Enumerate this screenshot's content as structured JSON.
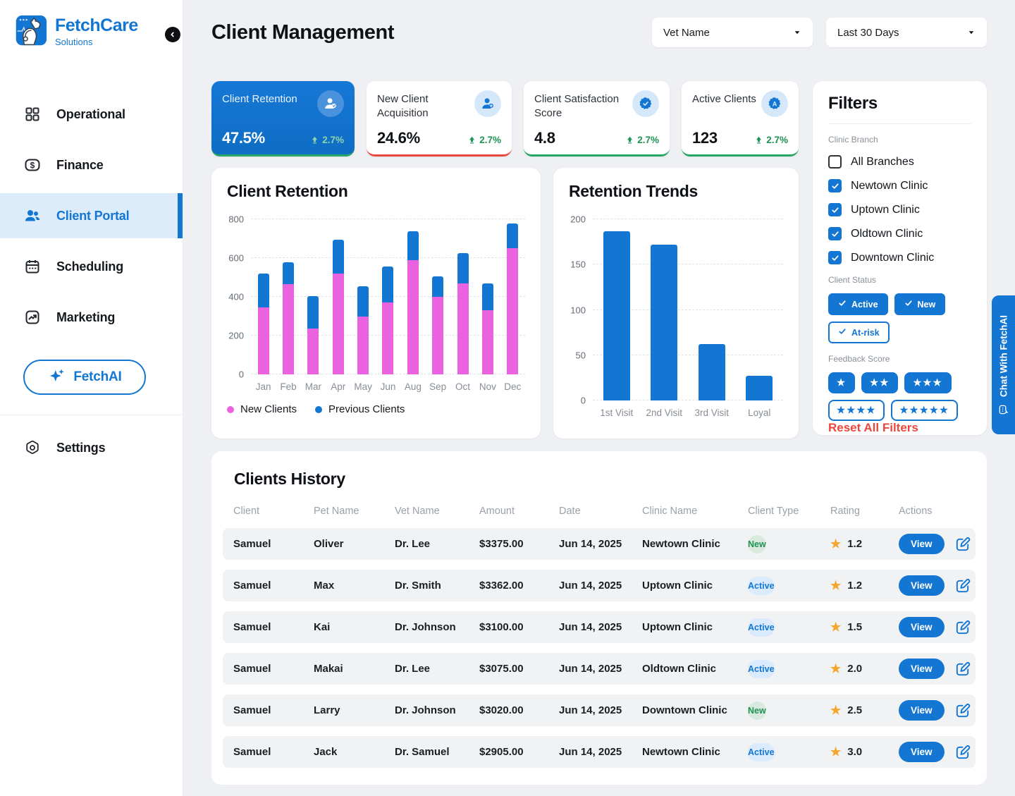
{
  "sidebar": {
    "brand": {
      "name": "FetchCare",
      "subtitle": "Solutions"
    },
    "items": [
      {
        "label": "Operational",
        "icon": "grid",
        "active": false
      },
      {
        "label": "Finance",
        "icon": "dollar",
        "active": false
      },
      {
        "label": "Client Portal",
        "icon": "users",
        "active": true
      },
      {
        "label": "Scheduling",
        "icon": "calendar",
        "active": false
      },
      {
        "label": "Marketing",
        "icon": "trend-chart",
        "active": false
      }
    ],
    "ai_button_label": "FetchAI",
    "settings_label": "Settings"
  },
  "header": {
    "title": "Client Management",
    "vet_filter": "Vet Name",
    "date_filter": "Last 30 Days"
  },
  "kpis": [
    {
      "label": "Client Retention",
      "value": "47.5%",
      "trend_value": "2.7%",
      "trend_direction": "up",
      "icon": "user-check",
      "accent_color": "#27a567",
      "active": true
    },
    {
      "label": "New Client Acquisition",
      "value": "24.6%",
      "trend_value": "2.7%",
      "trend_direction": "up",
      "icon": "user-plus",
      "accent_color": "#e8493f",
      "active": false
    },
    {
      "label": "Client Satisfaction Score",
      "value": "4.8",
      "trend_value": "2.7%",
      "trend_direction": "up",
      "icon": "badge-check",
      "accent_color": "#27a567",
      "active": false
    },
    {
      "label": "Active Clients",
      "value": "123",
      "trend_value": "2.7%",
      "trend_direction": "up",
      "icon": "badge-a",
      "accent_color": "#27a567",
      "active": false
    }
  ],
  "chart_data": [
    {
      "id": "client-retention",
      "type": "bar",
      "stacked": true,
      "title": "Client Retention",
      "categories": [
        "Jan",
        "Feb",
        "Mar",
        "Apr",
        "May",
        "Jun",
        "Aug",
        "Sep",
        "Oct",
        "Nov",
        "Dec"
      ],
      "series": [
        {
          "name": "New Clients",
          "color": "#ea62e0",
          "values": [
            345,
            465,
            235,
            520,
            300,
            370,
            590,
            400,
            470,
            330,
            650
          ]
        },
        {
          "name": "Previous Clients",
          "color": "#1276d2",
          "values": [
            175,
            115,
            170,
            175,
            155,
            185,
            150,
            105,
            155,
            140,
            130
          ]
        }
      ],
      "ylim": [
        0,
        800
      ],
      "yticks": [
        0,
        200,
        400,
        600,
        800
      ],
      "grid": "dashed",
      "legend_position": "bottom"
    },
    {
      "id": "retention-trends",
      "type": "bar",
      "stacked": false,
      "title": "Retention Trends",
      "categories": [
        "1st Visit",
        "2nd Visit",
        "3rd Visit",
        "Loyal"
      ],
      "values": [
        187,
        172,
        62,
        27
      ],
      "color": "#1276d2",
      "ylim": [
        0,
        200
      ],
      "yticks": [
        0,
        50,
        100,
        150,
        200
      ],
      "grid": "dashed"
    }
  ],
  "filters": {
    "title": "Filters",
    "clinic_branch": {
      "label": "Clinic Branch",
      "options": [
        {
          "label": "All Branches",
          "checked": false
        },
        {
          "label": "Newtown Clinic",
          "checked": true
        },
        {
          "label": "Uptown Clinic",
          "checked": true
        },
        {
          "label": "Oldtown Clinic",
          "checked": true
        },
        {
          "label": "Downtown Clinic",
          "checked": true
        }
      ]
    },
    "client_status": {
      "label": "Client Status",
      "chips": [
        {
          "label": "Active",
          "selected": true
        },
        {
          "label": "New",
          "selected": true
        },
        {
          "label": "At-risk",
          "selected": false
        }
      ]
    },
    "feedback_score": {
      "label": "Feedback Score",
      "options": [
        {
          "stars": 1,
          "selected": true
        },
        {
          "stars": 2,
          "selected": true
        },
        {
          "stars": 3,
          "selected": true
        },
        {
          "stars": 4,
          "selected": false
        },
        {
          "stars": 5,
          "selected": false
        }
      ]
    },
    "reset_label": "Reset All Filters"
  },
  "table": {
    "title": "Clients History",
    "columns": [
      "Client",
      "Pet Name",
      "Vet Name",
      "Amount",
      "Date",
      "Clinic Name",
      "Client Type",
      "Rating",
      "Actions"
    ],
    "view_button_label": "View",
    "rows": [
      {
        "client": "Samuel",
        "pet": "Oliver",
        "vet": "Dr. Lee",
        "amount": "$3375.00",
        "date": "Jun 14, 2025",
        "clinic": "Newtown Clinic",
        "type": "New",
        "rating": "1.2"
      },
      {
        "client": "Samuel",
        "pet": "Max",
        "vet": "Dr. Smith",
        "amount": "$3362.00",
        "date": "Jun 14, 2025",
        "clinic": "Uptown Clinic",
        "type": "Active",
        "rating": "1.2"
      },
      {
        "client": "Samuel",
        "pet": "Kai",
        "vet": "Dr. Johnson",
        "amount": "$3100.00",
        "date": "Jun 14, 2025",
        "clinic": "Uptown Clinic",
        "type": "Active",
        "rating": "1.5"
      },
      {
        "client": "Samuel",
        "pet": "Makai",
        "vet": "Dr. Lee",
        "amount": "$3075.00",
        "date": "Jun 14, 2025",
        "clinic": "Oldtown Clinic",
        "type": "Active",
        "rating": "2.0"
      },
      {
        "client": "Samuel",
        "pet": "Larry",
        "vet": "Dr. Johnson",
        "amount": "$3020.00",
        "date": "Jun 14, 2025",
        "clinic": "Downtown Clinic",
        "type": "New",
        "rating": "2.5"
      },
      {
        "client": "Samuel",
        "pet": "Jack",
        "vet": "Dr. Samuel",
        "amount": "$2905.00",
        "date": "Jun 14, 2025",
        "clinic": "Newtown Clinic",
        "type": "Active",
        "rating": "3.0"
      }
    ]
  },
  "chat_tab": {
    "label": "Chat With FetchAI"
  },
  "colors": {
    "primary": "#1276d2",
    "pink": "#ea62e0",
    "green": "#27a567",
    "red": "#e8493f",
    "star": "#f4a52a"
  }
}
